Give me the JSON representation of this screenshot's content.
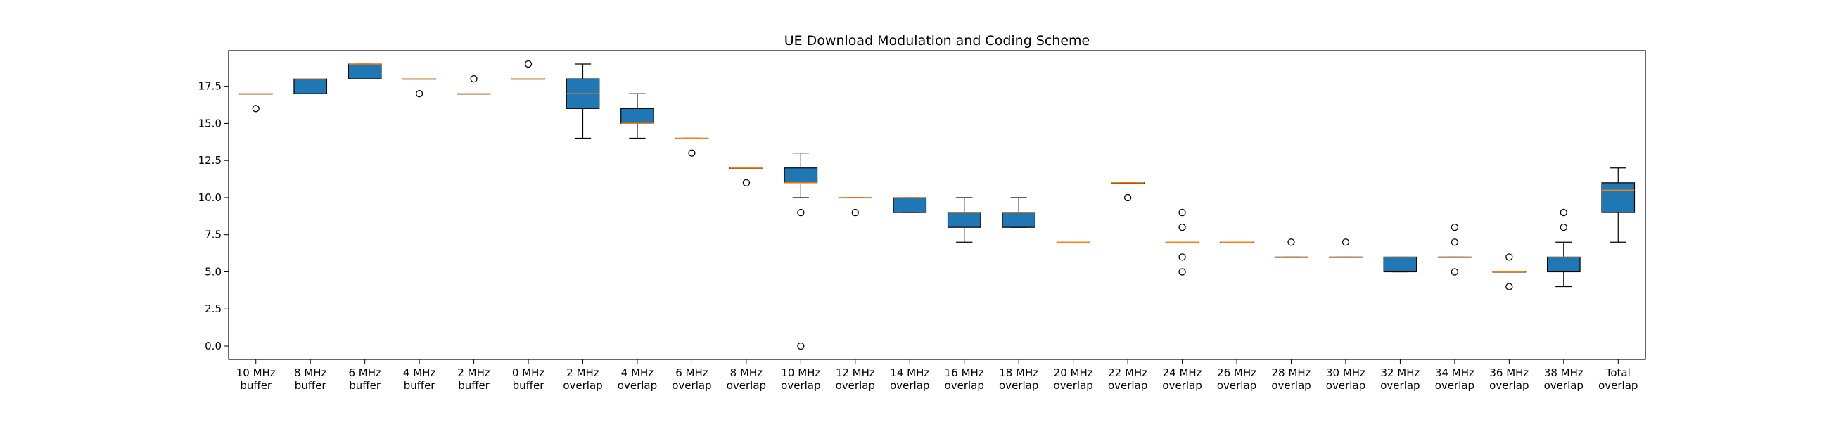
{
  "chart_data": {
    "type": "box",
    "title": "UE Download Modulation and Coding Scheme",
    "xlabel": "",
    "ylabel": "",
    "ylim": [
      -0.9,
      19.9
    ],
    "yticks": [
      0.0,
      2.5,
      5.0,
      7.5,
      10.0,
      12.5,
      15.0,
      17.5
    ],
    "ytick_labels": [
      "0.0",
      "2.5",
      "5.0",
      "7.5",
      "10.0",
      "12.5",
      "15.0",
      "17.5"
    ],
    "grid": false,
    "box_color": "#1f77b4",
    "median_color": "#ff7f0e",
    "categories": [
      [
        "10 MHz",
        "buffer"
      ],
      [
        "8 MHz",
        "buffer"
      ],
      [
        "6 MHz",
        "buffer"
      ],
      [
        "4 MHz",
        "buffer"
      ],
      [
        "2 MHz",
        "buffer"
      ],
      [
        "0 MHz",
        "buffer"
      ],
      [
        "2 MHz",
        "overlap"
      ],
      [
        "4 MHz",
        "overlap"
      ],
      [
        "6 MHz",
        "overlap"
      ],
      [
        "8 MHz",
        "overlap"
      ],
      [
        "10 MHz",
        "overlap"
      ],
      [
        "12 MHz",
        "overlap"
      ],
      [
        "14 MHz",
        "overlap"
      ],
      [
        "16 MHz",
        "overlap"
      ],
      [
        "18 MHz",
        "overlap"
      ],
      [
        "20 MHz",
        "overlap"
      ],
      [
        "22 MHz",
        "overlap"
      ],
      [
        "24 MHz",
        "overlap"
      ],
      [
        "26 MHz",
        "overlap"
      ],
      [
        "28 MHz",
        "overlap"
      ],
      [
        "30 MHz",
        "overlap"
      ],
      [
        "32 MHz",
        "overlap"
      ],
      [
        "34 MHz",
        "overlap"
      ],
      [
        "36 MHz",
        "overlap"
      ],
      [
        "38 MHz",
        "overlap"
      ],
      [
        "Total",
        "overlap"
      ]
    ],
    "boxes": [
      {
        "whislo": 17,
        "q1": 17,
        "med": 17,
        "q3": 17,
        "whishi": 17,
        "fliers": [
          16
        ]
      },
      {
        "whislo": 17,
        "q1": 17,
        "med": 18,
        "q3": 18,
        "whishi": 18,
        "fliers": []
      },
      {
        "whislo": 18,
        "q1": 18,
        "med": 19,
        "q3": 19,
        "whishi": 19,
        "fliers": []
      },
      {
        "whislo": 18,
        "q1": 18,
        "med": 18,
        "q3": 18,
        "whishi": 18,
        "fliers": [
          17
        ]
      },
      {
        "whislo": 17,
        "q1": 17,
        "med": 17,
        "q3": 17,
        "whishi": 17,
        "fliers": [
          18
        ]
      },
      {
        "whislo": 18,
        "q1": 18,
        "med": 18,
        "q3": 18,
        "whishi": 18,
        "fliers": [
          19
        ]
      },
      {
        "whislo": 14,
        "q1": 16,
        "med": 17,
        "q3": 18,
        "whishi": 19,
        "fliers": []
      },
      {
        "whislo": 14,
        "q1": 15,
        "med": 15,
        "q3": 16,
        "whishi": 17,
        "fliers": []
      },
      {
        "whislo": 14,
        "q1": 14,
        "med": 14,
        "q3": 14,
        "whishi": 14,
        "fliers": [
          13
        ]
      },
      {
        "whislo": 12,
        "q1": 12,
        "med": 12,
        "q3": 12,
        "whishi": 12,
        "fliers": [
          11
        ]
      },
      {
        "whislo": 10,
        "q1": 11,
        "med": 11,
        "q3": 12,
        "whishi": 13,
        "fliers": [
          9,
          0
        ]
      },
      {
        "whislo": 10,
        "q1": 10,
        "med": 10,
        "q3": 10,
        "whishi": 10,
        "fliers": [
          9
        ]
      },
      {
        "whislo": 9,
        "q1": 9,
        "med": 10,
        "q3": 10,
        "whishi": 10,
        "fliers": []
      },
      {
        "whislo": 7,
        "q1": 8,
        "med": 9,
        "q3": 9,
        "whishi": 10,
        "fliers": []
      },
      {
        "whislo": 8,
        "q1": 8,
        "med": 9,
        "q3": 9,
        "whishi": 10,
        "fliers": []
      },
      {
        "whislo": 7,
        "q1": 7,
        "med": 7,
        "q3": 7,
        "whishi": 7,
        "fliers": []
      },
      {
        "whislo": 11,
        "q1": 11,
        "med": 11,
        "q3": 11,
        "whishi": 11,
        "fliers": [
          10
        ]
      },
      {
        "whislo": 7,
        "q1": 7,
        "med": 7,
        "q3": 7,
        "whishi": 7,
        "fliers": [
          9,
          8,
          6,
          5
        ]
      },
      {
        "whislo": 7,
        "q1": 7,
        "med": 7,
        "q3": 7,
        "whishi": 7,
        "fliers": []
      },
      {
        "whislo": 6,
        "q1": 6,
        "med": 6,
        "q3": 6,
        "whishi": 6,
        "fliers": [
          7
        ]
      },
      {
        "whislo": 6,
        "q1": 6,
        "med": 6,
        "q3": 6,
        "whishi": 6,
        "fliers": [
          7
        ]
      },
      {
        "whislo": 5,
        "q1": 5,
        "med": 6,
        "q3": 6,
        "whishi": 6,
        "fliers": []
      },
      {
        "whislo": 6,
        "q1": 6,
        "med": 6,
        "q3": 6,
        "whishi": 6,
        "fliers": [
          8,
          7,
          5
        ]
      },
      {
        "whislo": 5,
        "q1": 5,
        "med": 5,
        "q3": 5,
        "whishi": 5,
        "fliers": [
          6,
          4
        ]
      },
      {
        "whislo": 4,
        "q1": 5,
        "med": 6,
        "q3": 6,
        "whishi": 7,
        "fliers": [
          9,
          8
        ]
      },
      {
        "whislo": 7,
        "q1": 9,
        "med": 10.5,
        "q3": 11,
        "whishi": 12,
        "fliers": []
      }
    ]
  }
}
